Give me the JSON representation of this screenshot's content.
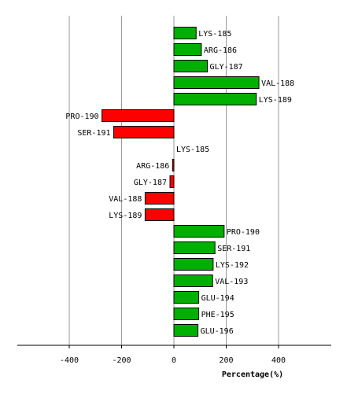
{
  "chart_data": {
    "type": "bar",
    "orientation": "horizontal",
    "title": "",
    "xlabel": "Percentage(%)",
    "ylabel": "",
    "xlim": [
      -600,
      600
    ],
    "xticks": [
      -400,
      -200,
      0,
      200,
      400
    ],
    "grid": true,
    "legend": "none",
    "colors": {
      "positive": "#00b000",
      "negative": "#ff0000",
      "grid": "#999999"
    },
    "categories": [
      "LYS-185",
      "ARG-186",
      "GLY-187",
      "VAL-188",
      "LYS-189",
      "PRO-190",
      "SER-191",
      "LYS-185",
      "ARG-186",
      "GLY-187",
      "VAL-188",
      "LYS-189",
      "PRO-190",
      "SER-191",
      "LYS-192",
      "VAL-193",
      "GLU-194",
      "PHE-195",
      "GLU-196"
    ],
    "values": [
      85,
      105,
      128,
      325,
      315,
      -275,
      -230,
      0,
      -5,
      -15,
      -110,
      -110,
      192,
      157,
      150,
      148,
      95,
      95,
      92
    ]
  }
}
